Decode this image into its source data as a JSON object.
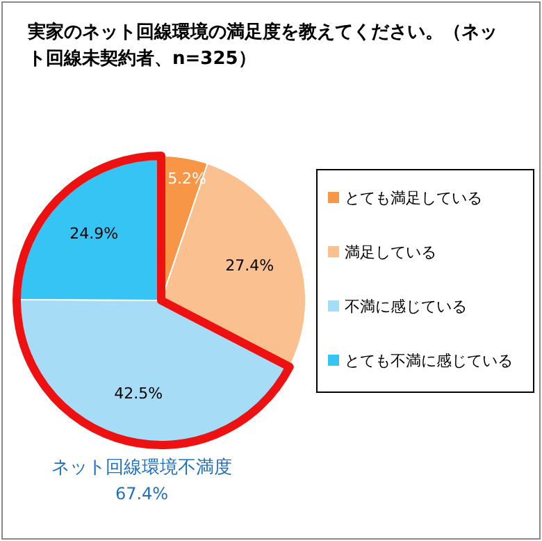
{
  "chart_data": {
    "type": "pie",
    "title": "実家のネット回線環境の満足度を教えてください。（ネット回線未契約者、n=325）",
    "categories": [
      "とても満足している",
      "満足している",
      "不満に感じている",
      "とても不満に感じている"
    ],
    "values": [
      5.2,
      27.4,
      42.5,
      24.9
    ],
    "colors": [
      "#f79646",
      "#fac090",
      "#a6dcf6",
      "#35c4f4"
    ],
    "value_labels": [
      "5.2%",
      "27.4%",
      "42.5%",
      "24.9%"
    ],
    "legend": "right",
    "annotations": [
      "ネット回線環境不満度",
      "67.4%"
    ]
  }
}
